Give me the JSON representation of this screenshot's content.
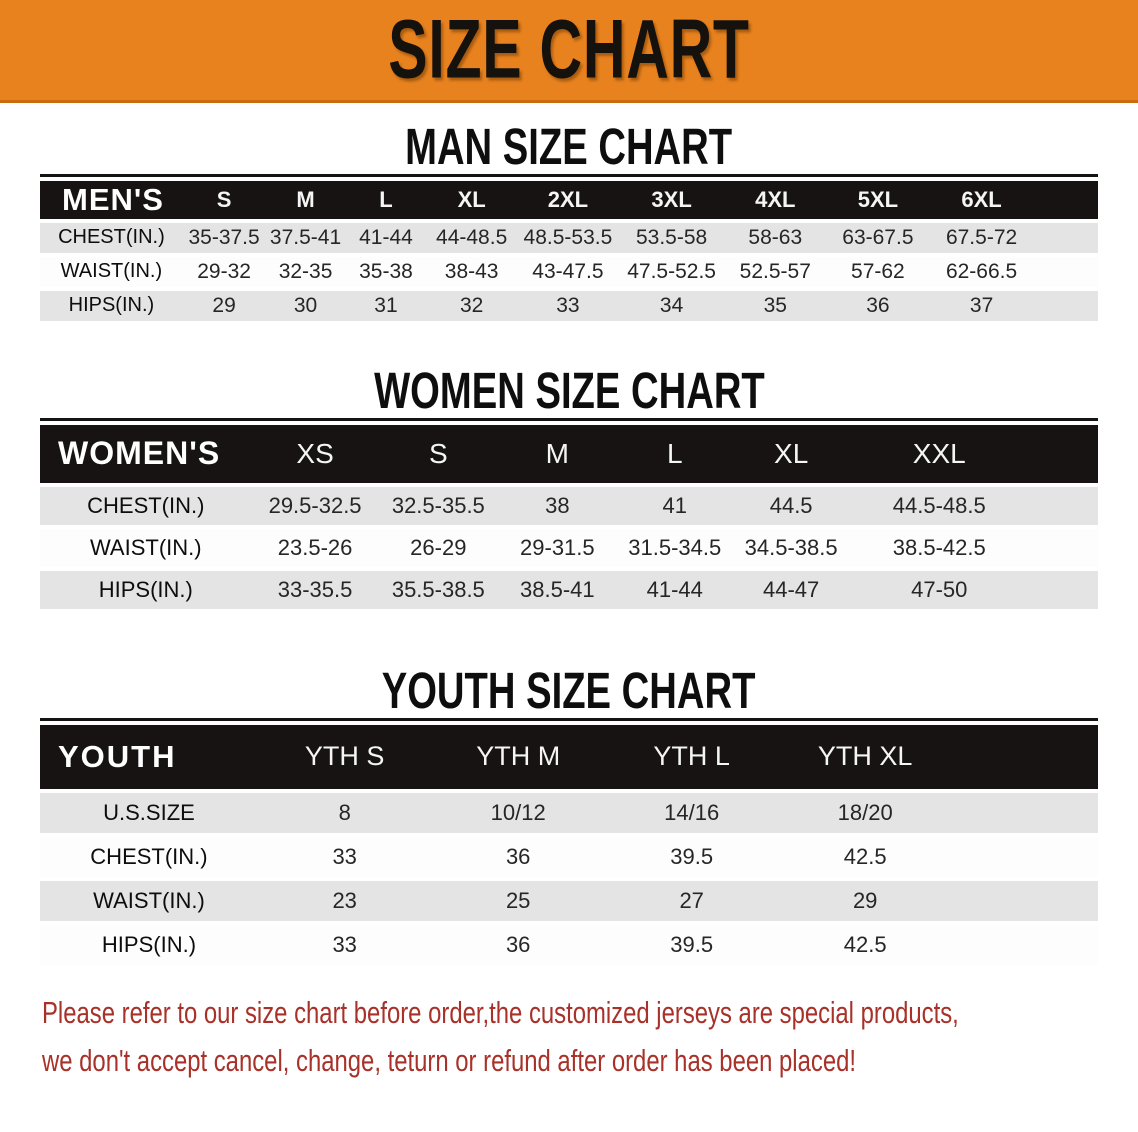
{
  "banner": {
    "title": "SIZE CHART",
    "bg_color": "#E8821E",
    "text_color": "#15110C"
  },
  "sections": [
    {
      "heading": "MAN SIZE CHART",
      "table": {
        "header_label": "MEN'S",
        "columns": [
          "S",
          "M",
          "L",
          "XL",
          "2XL",
          "3XL",
          "4XL",
          "5XL",
          "6XL"
        ],
        "rows": [
          {
            "label": "CHEST(IN.)",
            "values": [
              "35-37.5",
              "37.5-41",
              "41-44",
              "44-48.5",
              "48.5-53.5",
              "53.5-58",
              "58-63",
              "63-67.5",
              "67.5-72"
            ]
          },
          {
            "label": "WAIST(IN.)",
            "values": [
              "29-32",
              "32-35",
              "35-38",
              "38-43",
              "43-47.5",
              "47.5-52.5",
              "52.5-57",
              "57-62",
              "62-66.5"
            ]
          },
          {
            "label": "HIPS(IN.)",
            "values": [
              "29",
              "30",
              "31",
              "32",
              "33",
              "34",
              "35",
              "36",
              "37"
            ]
          }
        ]
      }
    },
    {
      "heading": "WOMEN SIZE CHART",
      "table": {
        "header_label": "WOMEN'S",
        "columns": [
          "XS",
          "S",
          "M",
          "L",
          "XL",
          "XXL"
        ],
        "rows": [
          {
            "label": "CHEST(IN.)",
            "values": [
              "29.5-32.5",
              "32.5-35.5",
              "38",
              "41",
              "44.5",
              "44.5-48.5"
            ]
          },
          {
            "label": "WAIST(IN.)",
            "values": [
              "23.5-26",
              "26-29",
              "29-31.5",
              "31.5-34.5",
              "34.5-38.5",
              "38.5-42.5"
            ]
          },
          {
            "label": "HIPS(IN.)",
            "values": [
              "33-35.5",
              "35.5-38.5",
              "38.5-41",
              "41-44",
              "44-47",
              "47-50"
            ]
          }
        ]
      }
    },
    {
      "heading": "YOUTH SIZE CHART",
      "table": {
        "header_label": "YOUTH",
        "columns": [
          "YTH S",
          "YTH M",
          "YTH L",
          "YTH XL"
        ],
        "rows": [
          {
            "label": "U.S.SIZE",
            "values": [
              "8",
              "10/12",
              "14/16",
              "18/20"
            ]
          },
          {
            "label": "CHEST(IN.)",
            "values": [
              "33",
              "36",
              "39.5",
              "42.5"
            ]
          },
          {
            "label": "WAIST(IN.)",
            "values": [
              "23",
              "25",
              "27",
              "29"
            ]
          },
          {
            "label": "HIPS(IN.)",
            "values": [
              "33",
              "36",
              "39.5",
              "42.5"
            ]
          }
        ]
      }
    }
  ],
  "table_colors": {
    "header_bar": "#161312",
    "stripe_gray": "#E4E4E4",
    "stripe_white": "#FDFDFD"
  },
  "disclaimer": {
    "line1": "Please refer to our size chart before order,the customized jerseys are special products,",
    "line2": "we don't accept cancel, change, teturn or refund after order has been placed!",
    "color": "#A8322A"
  }
}
